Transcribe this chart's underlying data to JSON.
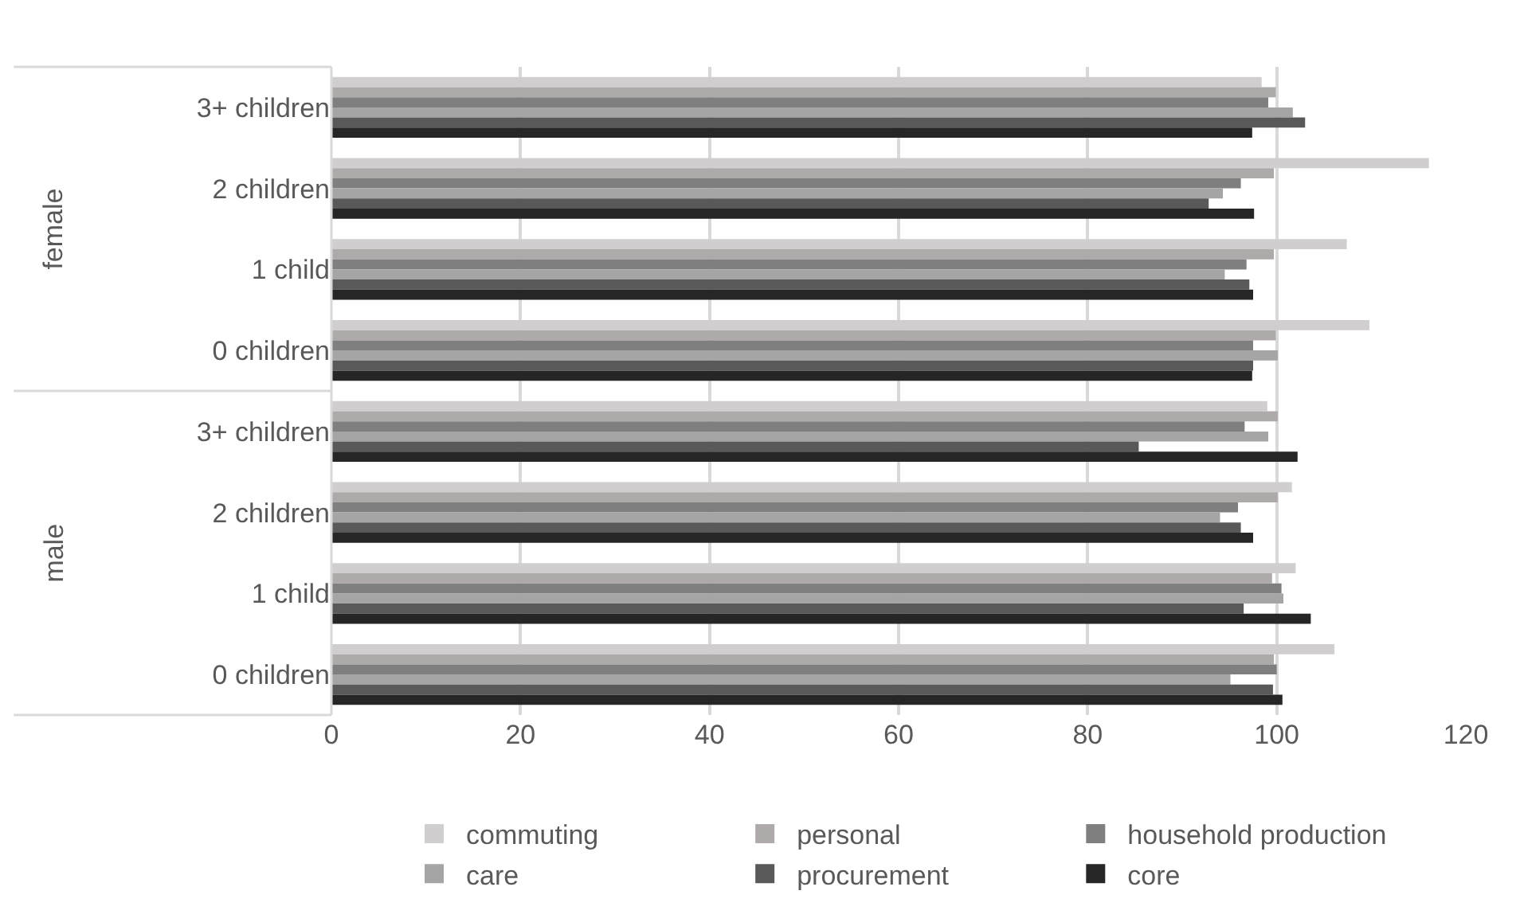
{
  "chart_data": {
    "type": "bar",
    "orientation": "horizontal",
    "categories": [
      "3+ children",
      "2 children",
      "1 child",
      "0 children",
      "3+ children",
      "2 children",
      "1 child",
      "0 children"
    ],
    "series": [
      {
        "name": "commuting",
        "color": "#d0cece",
        "values": [
          98.4,
          116.1,
          107.4,
          109.8,
          99.0,
          101.6,
          102.0,
          106.1
        ]
      },
      {
        "name": "personal",
        "color": "#aeaaaa",
        "values": [
          99.9,
          99.7,
          99.7,
          99.9,
          100.1,
          100.1,
          99.5,
          99.7
        ]
      },
      {
        "name": "household production",
        "color": "#7f7f7f",
        "values": [
          99.1,
          96.2,
          96.8,
          97.5,
          96.6,
          95.9,
          100.5,
          100.0
        ]
      },
      {
        "name": "care",
        "color": "#a5a5a5",
        "values": [
          101.7,
          94.3,
          94.5,
          100.1,
          99.1,
          94.0,
          100.7,
          95.1
        ]
      },
      {
        "name": "procurement",
        "color": "#595959",
        "values": [
          103.0,
          92.8,
          97.1,
          97.5,
          85.4,
          96.2,
          96.5,
          99.6
        ]
      },
      {
        "name": "core",
        "color": "#262626",
        "values": [
          97.4,
          97.6,
          97.5,
          97.4,
          102.2,
          97.5,
          103.6,
          100.6
        ]
      }
    ],
    "xlim": [
      0,
      120
    ],
    "xticks": [
      0,
      20,
      40,
      60,
      80,
      100,
      120
    ],
    "grid": "x",
    "legend": "bottom",
    "annotations": [
      "female",
      "male"
    ]
  }
}
